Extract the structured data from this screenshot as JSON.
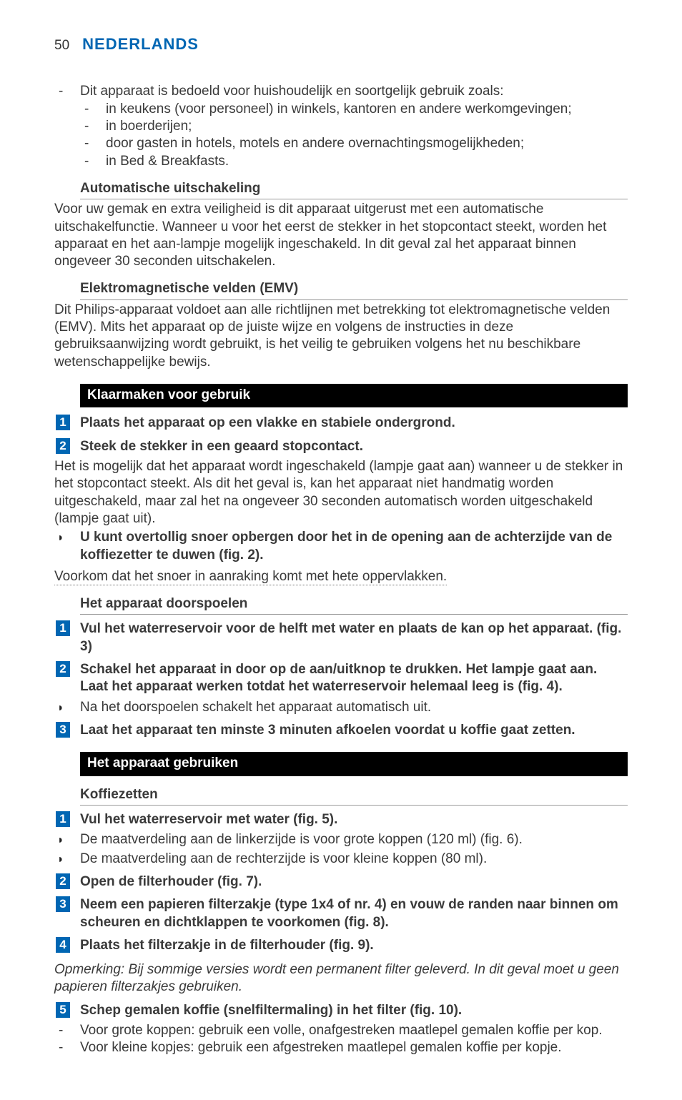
{
  "header": {
    "page_number": "50",
    "language_title": "NEDERLANDS"
  },
  "colors": {
    "brand_blue": "#0066b3",
    "text": "#3a3a3a",
    "bar_bg": "#000000",
    "bar_fg": "#ffffff",
    "rule": "#9a9a9a"
  },
  "intro": {
    "lead": "Dit apparaat is bedoeld voor huishoudelijk en soortgelijk gebruik zoals:",
    "items": [
      "in keukens (voor personeel) in winkels, kantoren en andere werkomgevingen;",
      "in boerderijen;",
      "door gasten in hotels, motels en andere overnachtingsmogelijkheden;",
      "in Bed & Breakfasts."
    ]
  },
  "auto_off": {
    "heading": "Automatische uitschakeling",
    "body": "Voor uw gemak en extra veiligheid is dit apparaat uitgerust met een automatische uitschakelfunctie. Wanneer u voor het eerst de stekker in het stopcontact steekt, worden het apparaat en het aan-lampje mogelijk ingeschakeld. In dit geval zal het apparaat binnen ongeveer 30 seconden uitschakelen."
  },
  "emv": {
    "heading": "Elektromagnetische velden (EMV)",
    "body": "Dit Philips-apparaat voldoet aan alle richtlijnen met betrekking tot elektromagnetische velden (EMV). Mits het apparaat op de juiste wijze en volgens de instructies in deze gebruiksaanwijzing wordt gebruikt, is het veilig te gebruiken volgens het nu beschikbare wetenschappelijke bewijs."
  },
  "prepare": {
    "bar": "Klaarmaken voor gebruik",
    "step1": "Plaats het apparaat op een vlakke en stabiele ondergrond.",
    "step2": "Steek de stekker in een geaard stopcontact.",
    "step2_body": "Het is mogelijk dat het apparaat wordt ingeschakeld (lampje gaat aan) wanneer u de stekker in het stopcontact steekt. Als dit het geval is, kan het apparaat niet handmatig worden uitgeschakeld, maar zal het na ongeveer 30 seconden automatisch worden uitgeschakeld (lampje gaat uit).",
    "bullet1": "U kunt overtollig snoer opbergen door het in de opening aan de achterzijde van de koffiezetter te duwen (fig. 2).",
    "warning": "Voorkom dat het snoer in aanraking komt met hete oppervlakken."
  },
  "flush": {
    "heading": "Het apparaat doorspoelen",
    "step1": "Vul het waterreservoir voor de helft met water en plaats de kan op het apparaat.  (fig. 3)",
    "step2": "Schakel het apparaat in door op de aan/uitknop te drukken. Het lampje gaat aan. Laat het apparaat werken totdat het waterreservoir helemaal leeg is (fig. 4).",
    "bullet1": "Na het doorspoelen schakelt het apparaat automatisch uit.",
    "step3": "Laat het apparaat ten minste 3 minuten afkoelen voordat u koffie gaat zetten."
  },
  "use": {
    "bar": "Het apparaat gebruiken",
    "sub": "Koffiezetten",
    "step1": "Vul het waterreservoir met water (fig. 5).",
    "bullet1": "De maatverdeling aan de linkerzijde is voor grote koppen (120 ml) (fig. 6).",
    "bullet2": "De maatverdeling aan de rechterzijde is voor kleine koppen (80 ml).",
    "step2": "Open de filterhouder (fig. 7).",
    "step3": "Neem een papieren filterzakje (type 1x4 of nr. 4) en vouw de randen naar binnen om scheuren en dichtklappen te voorkomen (fig. 8).",
    "step4": "Plaats het filterzakje in de filterhouder (fig. 9).",
    "note": "Opmerking: Bij sommige versies wordt een permanent filter geleverd. In dit geval moet u geen papieren filterzakjes gebruiken.",
    "step5": "Schep gemalen koffie (snelfiltermaling) in het filter (fig. 10).",
    "dash1": "Voor grote koppen: gebruik een volle, onafgestreken maatlepel gemalen koffie per kop.",
    "dash2": "Voor kleine kopjes: gebruik een afgestreken maatlepel gemalen koffie per kopje."
  }
}
